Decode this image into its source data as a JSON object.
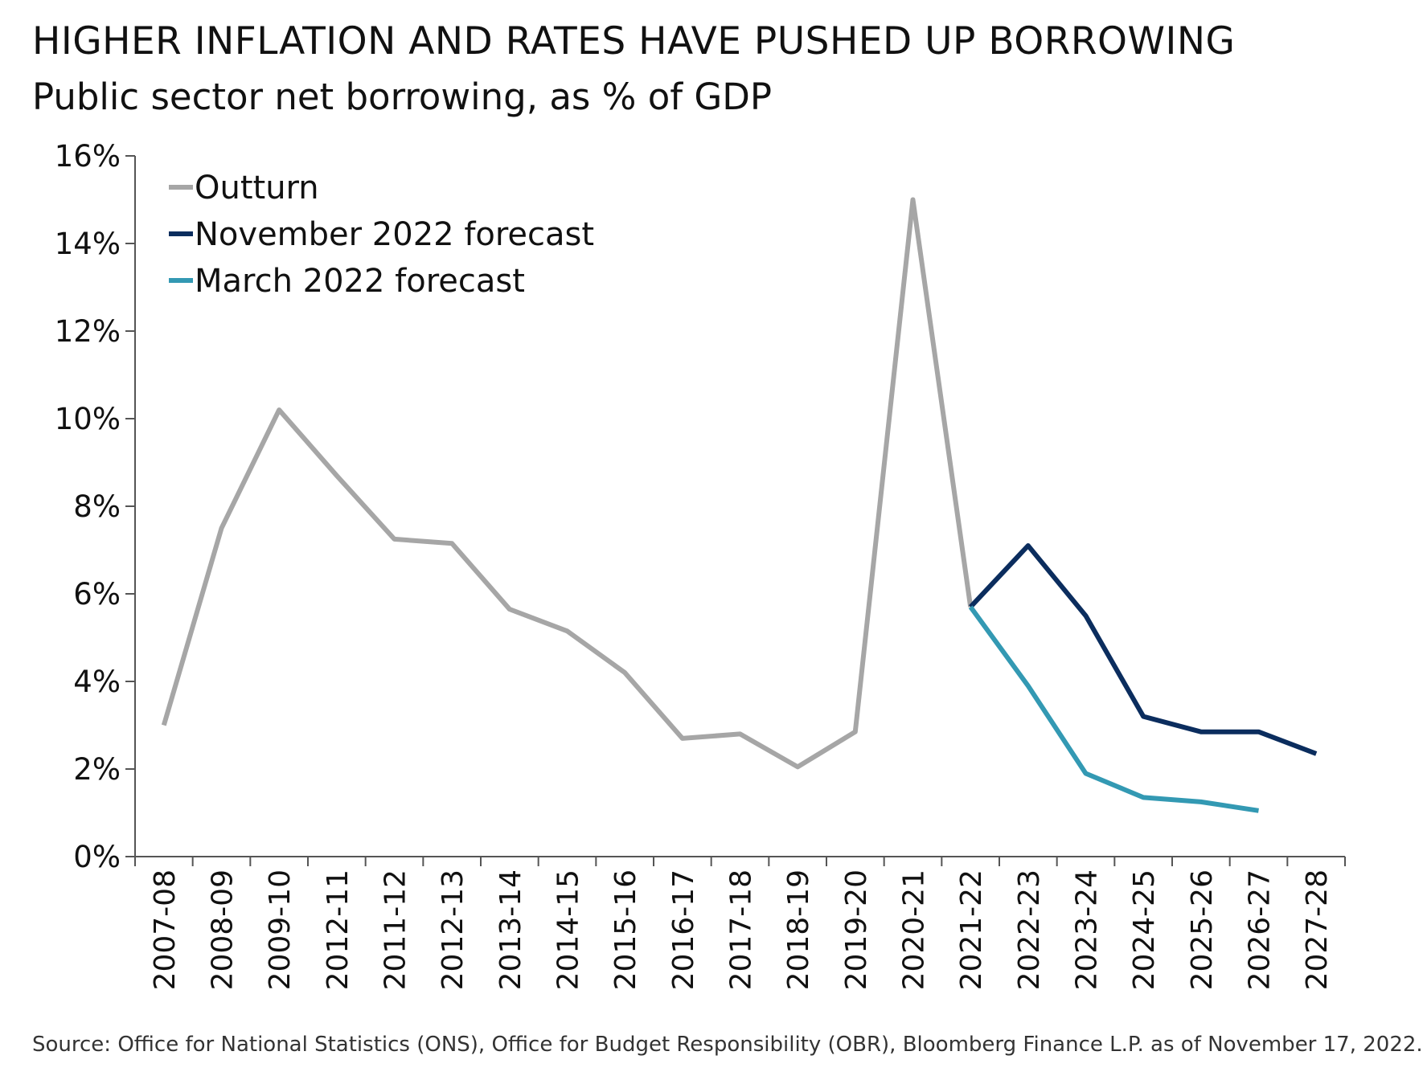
{
  "chart_data": {
    "type": "line",
    "title": "HIGHER INFLATION AND RATES HAVE PUSHED UP BORROWING",
    "subtitle": "Public sector net borrowing, as % of GDP",
    "source": "Source: Office for National Statistics (ONS), Office for Budget Responsibility (OBR), Bloomberg Finance L.P. as of November 17, 2022.",
    "categories": [
      "2007-08",
      "2008-09",
      "2009-10",
      "2012-11",
      "2011-12",
      "2012-13",
      "2013-14",
      "2014-15",
      "2015-16",
      "2016-17",
      "2017-18",
      "2018-19",
      "2019-20",
      "2020-21",
      "2021-22",
      "2022-23",
      "2023-24",
      "2024-25",
      "2025-26",
      "2026-27",
      "2027-28"
    ],
    "yticks": [
      "0%",
      "2%",
      "4%",
      "6%",
      "8%",
      "10%",
      "12%",
      "14%",
      "16%"
    ],
    "ylim": [
      0,
      16
    ],
    "grid": false,
    "legend_position": "top-left",
    "series": [
      {
        "name": "Outturn",
        "color": "#A6A6A6",
        "values": [
          3.0,
          7.5,
          10.2,
          8.7,
          7.25,
          7.15,
          5.65,
          5.15,
          4.2,
          2.7,
          2.8,
          2.05,
          2.85,
          15.0,
          5.7,
          null,
          null,
          null,
          null,
          null,
          null
        ]
      },
      {
        "name": "November 2022 forecast",
        "color": "#0B2D5E",
        "values": [
          null,
          null,
          null,
          null,
          null,
          null,
          null,
          null,
          null,
          null,
          null,
          null,
          null,
          null,
          5.7,
          7.1,
          5.5,
          3.2,
          2.85,
          2.85,
          2.35
        ]
      },
      {
        "name": "March 2022 forecast",
        "color": "#3399B3",
        "values": [
          null,
          null,
          null,
          null,
          null,
          null,
          null,
          null,
          null,
          null,
          null,
          null,
          null,
          null,
          5.7,
          3.9,
          1.9,
          1.35,
          1.25,
          1.05,
          null
        ]
      }
    ]
  }
}
